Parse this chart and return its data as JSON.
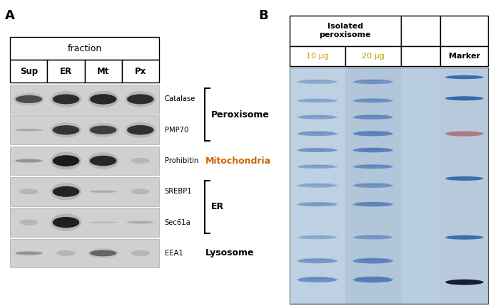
{
  "panel_A_label": "A",
  "panel_B_label": "B",
  "fraction_header": "fraction",
  "fraction_cols": [
    "Sup",
    "ER",
    "Mt",
    "Px"
  ],
  "wb_rows": [
    {
      "protein": "Catalase",
      "group": "Peroxisome",
      "bands": [
        0.65,
        0.82,
        0.85,
        0.82
      ]
    },
    {
      "protein": "PMP70",
      "group": "Peroxisome",
      "bands": [
        0.18,
        0.78,
        0.72,
        0.8
      ]
    },
    {
      "protein": "Prohibitin",
      "group": "Mitochondria",
      "bands": [
        0.28,
        0.92,
        0.85,
        0.04
      ]
    },
    {
      "protein": "SREBP1",
      "group": "ER",
      "bands": [
        0.03,
        0.88,
        0.18,
        0.04
      ]
    },
    {
      "protein": "Sec61a",
      "group": "ER",
      "bands": [
        0.03,
        0.9,
        0.12,
        0.18
      ]
    },
    {
      "protein": "EEA1",
      "group": "Lysosome",
      "bands": [
        0.28,
        0.04,
        0.52,
        0.04
      ]
    }
  ],
  "peroxisome_bracket_rows": [
    0,
    1
  ],
  "er_bracket_rows": [
    3,
    4
  ],
  "B_cols": [
    "10 μg",
    "20 μg",
    "",
    "Marker"
  ],
  "background_color": "#ffffff",
  "gel_bg_color": "#b8cde0",
  "lane1_bg": "#c5d8e8",
  "lane2_bg": "#b0c5d8",
  "gel_band_color": "#2a5aaa",
  "marker_band_color": "#2a5aaa",
  "marker_red_color": "#b06070"
}
